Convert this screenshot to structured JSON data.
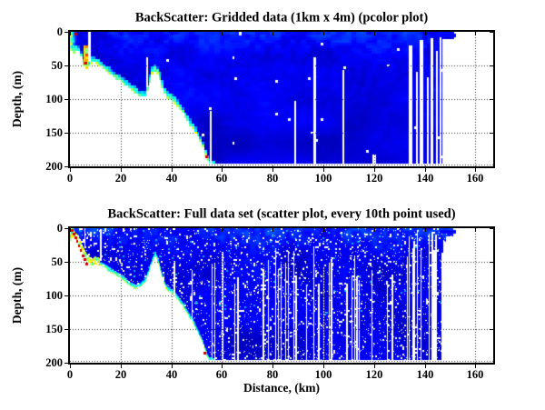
{
  "chart_data": [
    {
      "type": "heatmap",
      "title": "BackScatter: Gridded data (1km x 4m) (pcolor plot)",
      "xlabel": "",
      "ylabel": "Depth, (m)",
      "xlim": [
        0,
        167
      ],
      "depth_lim": [
        0,
        200
      ],
      "y_axis_reversed": true,
      "xticks": [
        0,
        20,
        40,
        60,
        80,
        100,
        120,
        140,
        160
      ],
      "yticks": [
        0,
        50,
        100,
        150,
        200
      ],
      "grid": "dotted",
      "legend": "none",
      "colormap": "jet",
      "color_meaning": "dark blue = low backscatter, red = high backscatter, white = no data",
      "data_extent_km": 151.7,
      "seafloor_boundary_km_m": [
        [
          0,
          25
        ],
        [
          1,
          32
        ],
        [
          2,
          28
        ],
        [
          3,
          26
        ],
        [
          4,
          33
        ],
        [
          5,
          42
        ],
        [
          6,
          58
        ],
        [
          7,
          52
        ],
        [
          8,
          48
        ],
        [
          9,
          44
        ],
        [
          10,
          46
        ],
        [
          12,
          52
        ],
        [
          14,
          58
        ],
        [
          16,
          64
        ],
        [
          18,
          70
        ],
        [
          20,
          74
        ],
        [
          22,
          80
        ],
        [
          24,
          86
        ],
        [
          26,
          92
        ],
        [
          28,
          96
        ],
        [
          29.5,
          97
        ],
        [
          30.5,
          88
        ],
        [
          31.5,
          74
        ],
        [
          32.5,
          62
        ],
        [
          33.5,
          58
        ],
        [
          34.5,
          62
        ],
        [
          35.5,
          70
        ],
        [
          36.5,
          82
        ],
        [
          37.5,
          93
        ],
        [
          38.5,
          98
        ],
        [
          40,
          101
        ],
        [
          42,
          108
        ],
        [
          44,
          118
        ],
        [
          46,
          130
        ],
        [
          48,
          141
        ],
        [
          50,
          153
        ],
        [
          52,
          168
        ],
        [
          53,
          178
        ],
        [
          54,
          188
        ],
        [
          55,
          196
        ],
        [
          56,
          200
        ],
        [
          167,
          200
        ]
      ],
      "white_gaps": [
        {
          "x0": 7.2,
          "x1": 8.2,
          "d0": 0,
          "d1": 45
        },
        {
          "x0": 30.0,
          "x1": 30.9,
          "d0": 38,
          "d1": 82
        },
        {
          "x0": 55.2,
          "x1": 56.0,
          "d0": 118,
          "d1": 200
        },
        {
          "x0": 66.8,
          "x1": 67.8,
          "d0": 0,
          "d1": 6
        },
        {
          "x0": 88.6,
          "x1": 89.4,
          "d0": 103,
          "d1": 200
        },
        {
          "x0": 96.2,
          "x1": 97.0,
          "d0": 38,
          "d1": 200
        },
        {
          "x0": 107.6,
          "x1": 108.4,
          "d0": 57,
          "d1": 200
        },
        {
          "x0": 119.2,
          "x1": 120.6,
          "d0": 183,
          "d1": 200
        },
        {
          "x0": 133.8,
          "x1": 135.2,
          "d0": 20,
          "d1": 200
        },
        {
          "x0": 136.6,
          "x1": 137.4,
          "d0": 60,
          "d1": 200
        },
        {
          "x0": 138.1,
          "x1": 139.3,
          "d0": 12,
          "d1": 200
        },
        {
          "x0": 140.7,
          "x1": 141.5,
          "d0": 68,
          "d1": 200
        },
        {
          "x0": 142.4,
          "x1": 143.2,
          "d0": 10,
          "d1": 200
        },
        {
          "x0": 144.3,
          "x1": 145.1,
          "d0": 28,
          "d1": 200
        },
        {
          "x0": 145.9,
          "x1": 146.5,
          "d0": 8,
          "d1": 200
        },
        {
          "x0": 147.1,
          "x1": 151.6,
          "d0": 11,
          "d1": 200
        }
      ],
      "color_bars": [
        {
          "x0": 143.2,
          "x1": 152.4,
          "d0": 3,
          "d1": 8.2,
          "v": 0.13
        }
      ],
      "high_backscatter_dots_km_m": [
        [
          2.2,
          4
        ],
        [
          6.3,
          46
        ],
        [
          54,
          186
        ]
      ],
      "striations": [],
      "render": {
        "seed": 3,
        "cell_km": 1,
        "cell_m": 4,
        "speckle_prob": 0.004,
        "fringe_m": 9,
        "left_patch_km": 3.2
      }
    },
    {
      "type": "scatter",
      "title": "BackScatter: Full data set (scatter plot, every 10th point used)",
      "xlabel": "Distance, (km)",
      "ylabel": "Depth, (m)",
      "xlim": [
        0,
        167
      ],
      "depth_lim": [
        0,
        200
      ],
      "y_axis_reversed": true,
      "xticks": [
        0,
        20,
        40,
        60,
        80,
        100,
        120,
        140,
        160
      ],
      "yticks": [
        0,
        50,
        100,
        150,
        200
      ],
      "grid": "dotted",
      "legend": "none",
      "colormap": "jet",
      "color_meaning": "dark blue = low backscatter, red = high backscatter, white = no data",
      "data_extent_km": 151.4,
      "seafloor_boundary_km_m": [
        [
          0,
          22
        ],
        [
          1.5,
          15
        ],
        [
          3,
          20
        ],
        [
          4,
          28
        ],
        [
          5,
          36
        ],
        [
          6,
          44
        ],
        [
          7,
          50
        ],
        [
          8,
          55
        ],
        [
          9,
          56
        ],
        [
          10,
          53
        ],
        [
          12,
          56
        ],
        [
          14,
          60
        ],
        [
          16,
          66
        ],
        [
          18,
          70
        ],
        [
          20,
          75
        ],
        [
          22,
          81
        ],
        [
          24,
          87
        ],
        [
          26,
          91
        ],
        [
          28,
          88
        ],
        [
          30,
          80
        ],
        [
          31,
          70
        ],
        [
          32,
          58
        ],
        [
          33,
          48
        ],
        [
          34,
          42
        ],
        [
          35,
          52
        ],
        [
          36,
          66
        ],
        [
          37,
          80
        ],
        [
          38,
          90
        ],
        [
          39,
          95
        ],
        [
          40,
          97
        ],
        [
          42,
          105
        ],
        [
          44,
          115
        ],
        [
          46,
          127
        ],
        [
          48,
          139
        ],
        [
          50,
          153
        ],
        [
          52,
          170
        ],
        [
          53,
          181
        ],
        [
          54,
          192
        ],
        [
          55,
          199
        ],
        [
          56,
          200
        ],
        [
          167,
          200
        ]
      ],
      "white_gaps": [
        {
          "x0": 5.7,
          "x1": 6.2,
          "d0": 0,
          "d1": 28
        },
        {
          "x0": 12.0,
          "x1": 12.5,
          "d0": 2,
          "d1": 48
        },
        {
          "x0": 40.9,
          "x1": 41.4,
          "d0": 48,
          "d1": 135
        },
        {
          "x0": 47.9,
          "x1": 48.4,
          "d0": 62,
          "d1": 200
        },
        {
          "x0": 148.3,
          "x1": 151.4,
          "d0": 12,
          "d1": 200
        }
      ],
      "color_bars": [
        {
          "x0": 146.0,
          "x1": 152.4,
          "d0": 2.5,
          "d1": 7.5,
          "v": 0.13
        }
      ],
      "high_backscatter_dots_km_m": [
        [
          0.9,
          4
        ],
        [
          1.6,
          9
        ],
        [
          2.3,
          14
        ],
        [
          2.9,
          20
        ],
        [
          3.6,
          27
        ],
        [
          4.3,
          33
        ],
        [
          5.1,
          41
        ],
        [
          5.8,
          47
        ],
        [
          6.5,
          54
        ],
        [
          53.2,
          186
        ]
      ],
      "striations": [
        {
          "x0": 54,
          "x1": 132,
          "step": 1.0,
          "prob": 0.32,
          "topMin": 25,
          "topMax": 85,
          "wMin": 0.3,
          "wMax": 0.55
        },
        {
          "x0": 133,
          "x1": 148.2,
          "step": 0.65,
          "prob": 0.52,
          "topMin": 4,
          "topMax": 45,
          "wMin": 0.35,
          "wMax": 0.8
        }
      ],
      "render": {
        "seed": 11,
        "cell_km": 0.36,
        "cell_m": 1.5,
        "speckle_prob": 0.055,
        "fringe_m": 7,
        "left_patch_km": 2.6
      }
    }
  ]
}
